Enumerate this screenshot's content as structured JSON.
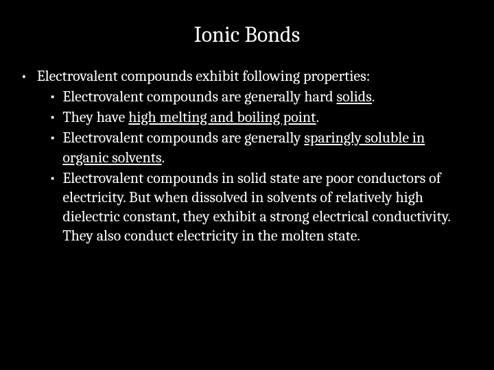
{
  "background_color": "#000000",
  "text_color": "#ffffff",
  "title": "Ionic Bonds",
  "title_fontsize": 32,
  "body_fontsize": 22,
  "font_family": "Cambria, Georgia, serif",
  "level1_bullet": "•",
  "level2_bullet": "▪",
  "intro": "Electrovalent compounds exhibit following properties:",
  "items": [
    {
      "pre": "Electrovalent compounds are generally hard ",
      "underlined": "solids",
      "post": "."
    },
    {
      "pre": "They have ",
      "underlined": "high melting and boiling point",
      "post": "."
    },
    {
      "pre": "Electrovalent compounds are generally ",
      "underlined": "sparingly soluble in organic solvents",
      "post": "."
    },
    {
      "pre": "Electrovalent compounds in solid state are poor conductors of electricity. But when dissolved in solvents of relatively high dielectric constant, they exhibit a strong electrical conductivity. They also conduct electricity in the molten state.",
      "underlined": "",
      "post": ""
    }
  ]
}
